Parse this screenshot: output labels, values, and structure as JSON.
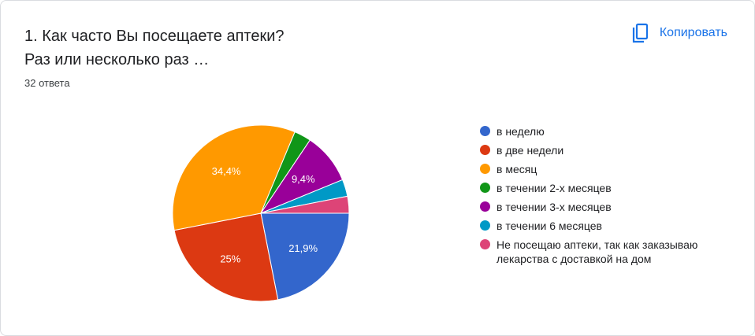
{
  "question": {
    "title": "1. Как часто Вы посещаете аптеки?\nРаз или несколько раз …",
    "response_count": "32 ответа"
  },
  "copy_button": {
    "label": "Копировать",
    "icon": "copy-icon"
  },
  "colors": {
    "primary_blue": "#1a73e8"
  },
  "chart_data": {
    "type": "pie",
    "categories": [
      "в неделю",
      "в две недели",
      "в месяц",
      "в течении 2-х месяцев",
      "в течении 3-х месяцев",
      "в течении 6 месяцев",
      "Не посещаю аптеки, так как заказываю лекарства с доставкой на дом"
    ],
    "values": [
      21.9,
      25,
      34.4,
      3.1,
      9.4,
      3.1,
      3.1
    ],
    "labels": [
      "21,9%",
      "25%",
      "34,4%",
      "",
      "9,4%",
      "",
      ""
    ],
    "colors": [
      "#3366cc",
      "#dc3912",
      "#ff9900",
      "#109618",
      "#990099",
      "#0099c6",
      "#dd4477"
    ],
    "legend_position": "right"
  }
}
